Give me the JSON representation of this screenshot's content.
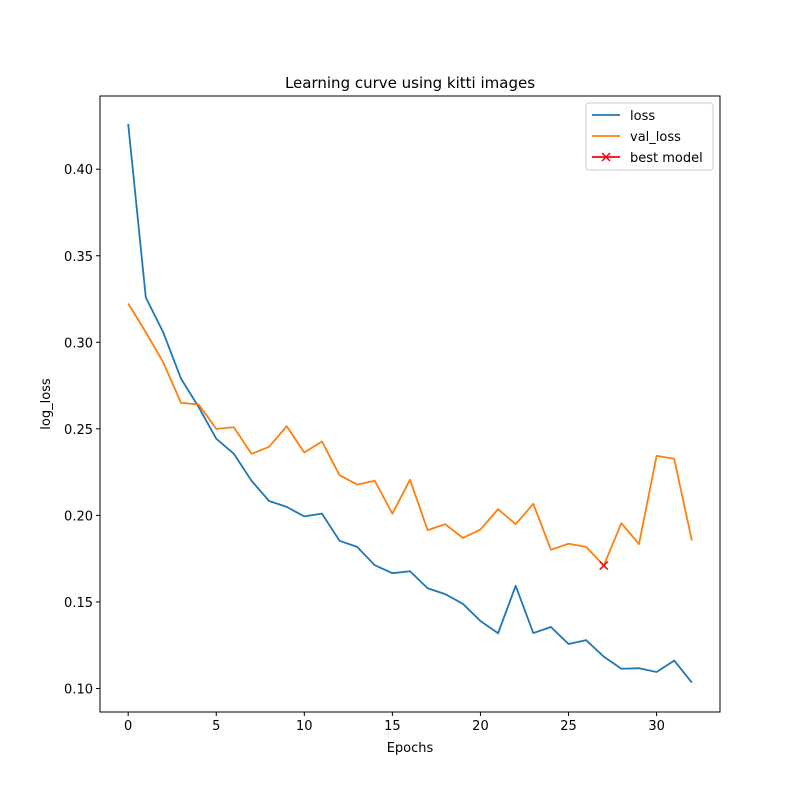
{
  "chart_data": {
    "type": "line",
    "title": "Learning curve using kitti images",
    "xlabel": "Epochs",
    "ylabel": "log_loss",
    "xlim": [
      -1.6,
      33.6
    ],
    "ylim": [
      0.0864,
      0.4423
    ],
    "xticks": [
      0,
      5,
      10,
      15,
      20,
      25,
      30
    ],
    "xtick_labels": [
      "0",
      "5",
      "10",
      "15",
      "20",
      "25",
      "30"
    ],
    "yticks": [
      0.1,
      0.15,
      0.2,
      0.25,
      0.3,
      0.35,
      0.4
    ],
    "ytick_labels": [
      "0.10",
      "0.15",
      "0.20",
      "0.25",
      "0.30",
      "0.35",
      "0.40"
    ],
    "grid": false,
    "legend_position": "top-right",
    "x": [
      0,
      1,
      2,
      3,
      4,
      5,
      6,
      7,
      8,
      9,
      10,
      11,
      12,
      13,
      14,
      15,
      16,
      17,
      18,
      19,
      20,
      21,
      22,
      23,
      24,
      25,
      26,
      27,
      28,
      29,
      30,
      31,
      32
    ],
    "series": [
      {
        "name": "loss",
        "color": "#1f77b4",
        "values": [
          0.4262,
          0.3259,
          0.3055,
          0.279,
          0.2626,
          0.2443,
          0.2356,
          0.22,
          0.2083,
          0.2049,
          0.1994,
          0.201,
          0.1853,
          0.1818,
          0.1712,
          0.1666,
          0.1677,
          0.1579,
          0.1545,
          0.1489,
          0.139,
          0.1319,
          0.1593,
          0.132,
          0.1355,
          0.1257,
          0.1279,
          0.1184,
          0.1114,
          0.1117,
          0.1095,
          0.1161,
          0.1034
        ]
      },
      {
        "name": "val_loss",
        "color": "#ff7f0e",
        "values": [
          0.3224,
          0.3058,
          0.2882,
          0.265,
          0.2641,
          0.25,
          0.2509,
          0.2355,
          0.2396,
          0.2515,
          0.2363,
          0.2427,
          0.2232,
          0.2178,
          0.22,
          0.201,
          0.2206,
          0.1915,
          0.1949,
          0.187,
          0.1918,
          0.2036,
          0.1949,
          0.2067,
          0.1801,
          0.1836,
          0.1818,
          0.171,
          0.1955,
          0.1834,
          0.2344,
          0.2327,
          0.1855
        ]
      }
    ],
    "markers": [
      {
        "name": "best model",
        "color": "#ff0000",
        "marker": "x",
        "x": 27,
        "y": 0.171
      }
    ]
  }
}
